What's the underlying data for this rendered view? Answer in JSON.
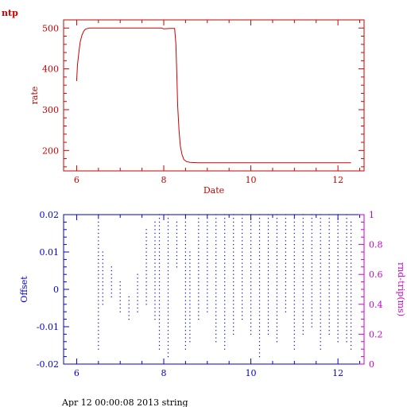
{
  "corner_label": "ntp",
  "footer": "Apr 12 00:00:08 2013 string",
  "colors": {
    "top": "#cc0000",
    "bottom": "#0000cc",
    "right": "#cc00cc"
  },
  "chart_data": [
    {
      "type": "line",
      "title": "",
      "xlabel": "Date",
      "ylabel": "rate",
      "xlim": [
        5.7,
        12.6
      ],
      "ylim": [
        150,
        520
      ],
      "xticks": [
        "6",
        "8",
        "10",
        "12"
      ],
      "yticks": [
        "200",
        "300",
        "400",
        "500"
      ],
      "grid": false,
      "series": [
        {
          "x": [
            6.0,
            6.02,
            6.05,
            6.08,
            6.12,
            6.16,
            6.2,
            6.25,
            6.3,
            6.4,
            6.6,
            7.0,
            7.5,
            7.95,
            8.0,
            8.15,
            8.25,
            8.28,
            8.3,
            8.32,
            8.35,
            8.38,
            8.42,
            8.46,
            8.52,
            8.6,
            8.8,
            9.5,
            10.5,
            11.5,
            12.3
          ],
          "y": [
            370,
            410,
            440,
            465,
            482,
            492,
            497,
            499,
            500,
            500,
            500,
            500,
            500,
            500,
            498,
            499,
            499,
            460,
            390,
            310,
            250,
            212,
            190,
            178,
            173,
            171,
            170,
            170,
            170,
            170,
            170
          ]
        }
      ]
    },
    {
      "type": "scatter",
      "title": "",
      "xlabel": "",
      "ylabel": "Offset",
      "y2label": "rnd-trip(ms)",
      "xlim": [
        5.7,
        12.6
      ],
      "ylim": [
        -0.02,
        0.02
      ],
      "y2lim": [
        0,
        1
      ],
      "xticks": [
        "6",
        "8",
        "10",
        "12"
      ],
      "yticks": [
        "-0.02",
        "-0.01",
        "0",
        "0.01",
        "0.02"
      ],
      "y2ticks": [
        "0",
        "0.2",
        "0.4",
        "0.6",
        "0.8",
        "1"
      ],
      "grid": false,
      "series": [
        {
          "x": [
            6.5,
            6.6,
            6.8,
            7.0,
            7.2,
            7.4,
            7.6,
            7.8,
            7.9,
            8.1,
            8.3,
            8.5,
            8.6,
            8.8,
            9.0,
            9.2,
            9.4,
            9.6,
            9.8,
            10.0,
            10.2,
            10.4,
            10.6,
            10.8,
            11.0,
            11.2,
            11.4,
            11.6,
            11.8,
            12.0,
            12.2,
            12.3
          ],
          "y_min": [
            -0.016,
            -0.004,
            -0.002,
            -0.006,
            -0.008,
            -0.006,
            -0.004,
            -0.008,
            -0.016,
            -0.018,
            0.006,
            -0.016,
            -0.014,
            -0.008,
            -0.006,
            -0.014,
            -0.016,
            -0.012,
            -0.008,
            -0.012,
            -0.018,
            -0.012,
            -0.014,
            -0.006,
            -0.016,
            -0.012,
            -0.01,
            -0.016,
            -0.012,
            -0.014,
            -0.014,
            -0.016
          ],
          "y_max": [
            0.02,
            0.01,
            0.006,
            0.002,
            -0.002,
            0.004,
            0.016,
            0.018,
            0.02,
            0.02,
            0.018,
            0.02,
            0.01,
            0.02,
            0.02,
            0.02,
            0.02,
            0.02,
            0.02,
            0.02,
            0.02,
            0.02,
            0.02,
            0.02,
            0.02,
            0.02,
            0.02,
            0.02,
            0.02,
            0.02,
            0.02,
            0.018
          ]
        }
      ]
    }
  ]
}
